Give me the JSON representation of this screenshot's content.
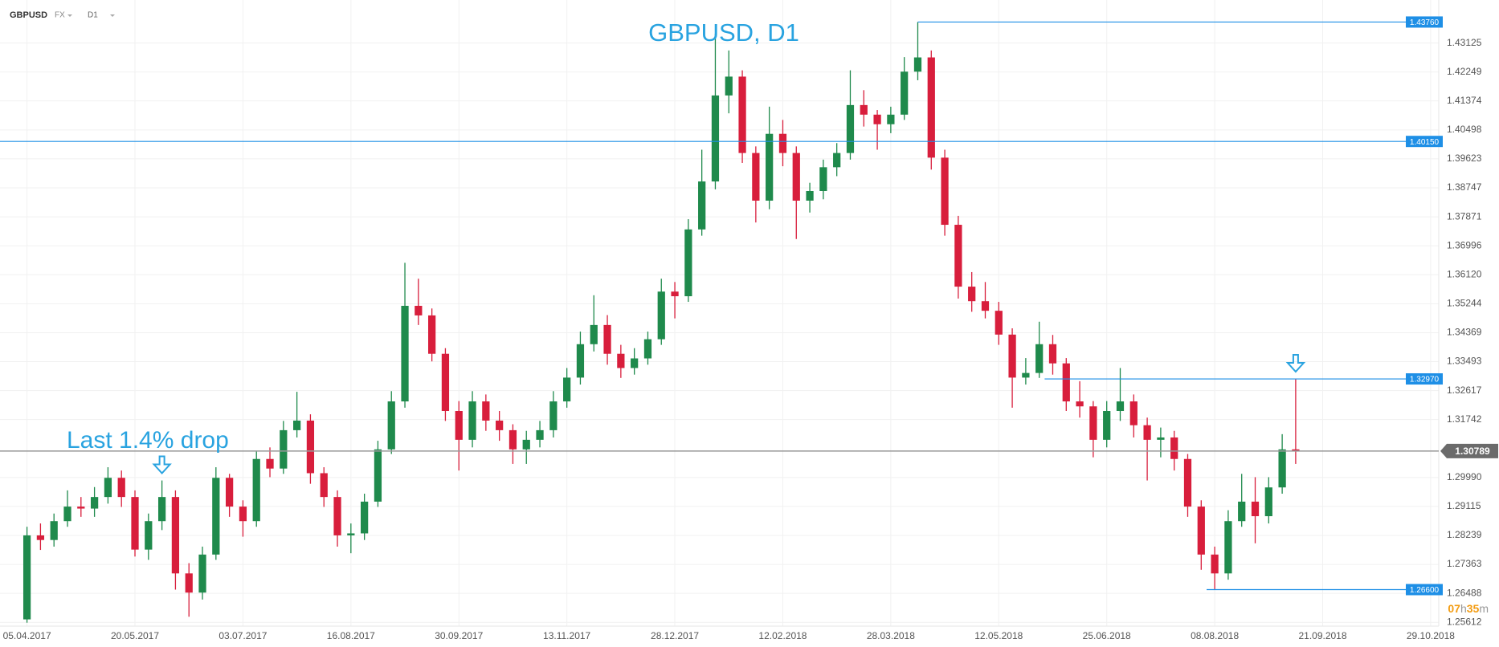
{
  "header": {
    "symbol": "GBPUSD",
    "market": "FX",
    "timeframe": "D1"
  },
  "chart_data": {
    "type": "candlestick",
    "annotations": [
      "GBPUSD, D1",
      "Last 1.4% drop"
    ],
    "up_color": "#1f8a4c",
    "down_color": "#d81e3c",
    "level_color": "#1e8fe6",
    "grid": true,
    "xlim": [
      -2,
      104.6
    ],
    "xticks": [
      {
        "value": 0,
        "label": "05.04.2017"
      },
      {
        "value": 8,
        "label": "20.05.2017"
      },
      {
        "value": 16,
        "label": "03.07.2017"
      },
      {
        "value": 24,
        "label": "16.08.2017"
      },
      {
        "value": 32,
        "label": "30.09.2017"
      },
      {
        "value": 40,
        "label": "13.11.2017"
      },
      {
        "value": 48,
        "label": "28.12.2017"
      },
      {
        "value": 56,
        "label": "12.02.2018"
      },
      {
        "value": 64,
        "label": "28.03.2018"
      },
      {
        "value": 72,
        "label": "12.05.2018"
      },
      {
        "value": 80,
        "label": "25.06.2018"
      },
      {
        "value": 88,
        "label": "08.08.2018"
      },
      {
        "value": 96,
        "label": "21.09.2018"
      },
      {
        "value": 104,
        "label": "29.10.2018"
      }
    ],
    "ylim": [
      1.25496,
      1.44426
    ],
    "yticks": [
      1.43125,
      1.42249,
      1.41374,
      1.40498,
      1.39623,
      1.38747,
      1.37871,
      1.36996,
      {
        "value": 1.3612,
        "label": "1.36120"
      },
      1.35244,
      1.34369,
      1.33493,
      1.32617,
      1.31742,
      {
        "value": 1.2999,
        "label": "1.29990"
      },
      1.29115,
      1.28239,
      1.27363,
      1.26488,
      1.25612
    ],
    "levels": [
      {
        "value": 1.4376,
        "label": "1.43760"
      },
      {
        "value": 1.4015,
        "label": "1.40150"
      },
      {
        "value": 1.3297,
        "label": "1.32970"
      },
      {
        "value": 1.266,
        "label": "1.26600"
      }
    ],
    "current_price": 1.30789,
    "ohlc": [
      [
        1.257,
        1.285,
        1.256,
        1.2824
      ],
      [
        1.2824,
        1.286,
        1.278,
        1.281
      ],
      [
        1.281,
        1.289,
        1.279,
        1.2867
      ],
      [
        1.2867,
        1.296,
        1.285,
        1.2911
      ],
      [
        1.2911,
        1.294,
        1.288,
        1.2905
      ],
      [
        1.2905,
        1.297,
        1.288,
        1.294
      ],
      [
        1.294,
        1.303,
        1.292,
        1.2998
      ],
      [
        1.2998,
        1.302,
        1.291,
        1.294
      ],
      [
        1.294,
        1.296,
        1.276,
        1.2781
      ],
      [
        1.2781,
        1.289,
        1.275,
        1.2867
      ],
      [
        1.2867,
        1.299,
        1.284,
        1.294
      ],
      [
        1.294,
        1.296,
        1.266,
        1.2709
      ],
      [
        1.2709,
        1.274,
        1.2578,
        1.2651
      ],
      [
        1.2651,
        1.279,
        1.263,
        1.2766
      ],
      [
        1.2766,
        1.303,
        1.275,
        1.2998
      ],
      [
        1.2998,
        1.301,
        1.288,
        1.2911
      ],
      [
        1.2911,
        1.293,
        1.282,
        1.2867
      ],
      [
        1.2867,
        1.308,
        1.285,
        1.3055
      ],
      [
        1.3055,
        1.309,
        1.3,
        1.3026
      ],
      [
        1.3026,
        1.317,
        1.301,
        1.3142
      ],
      [
        1.3142,
        1.3258,
        1.312,
        1.3171
      ],
      [
        1.3171,
        1.319,
        1.298,
        1.3012
      ],
      [
        1.3012,
        1.303,
        1.291,
        1.294
      ],
      [
        1.294,
        1.296,
        1.279,
        1.2824
      ],
      [
        1.2824,
        1.286,
        1.277,
        1.283
      ],
      [
        1.283,
        1.295,
        1.281,
        1.2926
      ],
      [
        1.2926,
        1.311,
        1.291,
        1.3084
      ],
      [
        1.3084,
        1.326,
        1.307,
        1.3229
      ],
      [
        1.3229,
        1.3648,
        1.321,
        1.3518
      ],
      [
        1.3518,
        1.36,
        1.346,
        1.3489
      ],
      [
        1.3489,
        1.351,
        1.335,
        1.3373
      ],
      [
        1.3373,
        1.339,
        1.317,
        1.32
      ],
      [
        1.32,
        1.323,
        1.302,
        1.3113
      ],
      [
        1.3113,
        1.326,
        1.309,
        1.3229
      ],
      [
        1.3229,
        1.325,
        1.314,
        1.3171
      ],
      [
        1.3171,
        1.32,
        1.311,
        1.3142
      ],
      [
        1.3142,
        1.316,
        1.304,
        1.3084
      ],
      [
        1.3084,
        1.314,
        1.304,
        1.3113
      ],
      [
        1.3113,
        1.317,
        1.309,
        1.3142
      ],
      [
        1.3142,
        1.326,
        1.312,
        1.3229
      ],
      [
        1.3229,
        1.333,
        1.321,
        1.3301
      ],
      [
        1.3301,
        1.344,
        1.328,
        1.3402
      ],
      [
        1.3402,
        1.355,
        1.338,
        1.346
      ],
      [
        1.346,
        1.349,
        1.334,
        1.3373
      ],
      [
        1.3373,
        1.34,
        1.33,
        1.333
      ],
      [
        1.333,
        1.339,
        1.331,
        1.3359
      ],
      [
        1.3359,
        1.344,
        1.334,
        1.3417
      ],
      [
        1.3417,
        1.36,
        1.34,
        1.3561
      ],
      [
        1.3561,
        1.359,
        1.348,
        1.3547
      ],
      [
        1.3547,
        1.378,
        1.353,
        1.3749
      ],
      [
        1.3749,
        1.399,
        1.373,
        1.3894
      ],
      [
        1.3894,
        1.4341,
        1.387,
        1.4154
      ],
      [
        1.4154,
        1.429,
        1.41,
        1.4211
      ],
      [
        1.4211,
        1.423,
        1.395,
        1.398
      ],
      [
        1.398,
        1.4,
        1.377,
        1.3836
      ],
      [
        1.3836,
        1.412,
        1.381,
        1.4038
      ],
      [
        1.4038,
        1.408,
        1.394,
        1.398
      ],
      [
        1.398,
        1.4,
        1.372,
        1.3836
      ],
      [
        1.3836,
        1.389,
        1.38,
        1.3865
      ],
      [
        1.3865,
        1.396,
        1.384,
        1.3937
      ],
      [
        1.3937,
        1.401,
        1.391,
        1.398
      ],
      [
        1.398,
        1.423,
        1.396,
        1.4125
      ],
      [
        1.4125,
        1.417,
        1.406,
        1.4096
      ],
      [
        1.4096,
        1.411,
        1.399,
        1.4067
      ],
      [
        1.4067,
        1.412,
        1.404,
        1.4096
      ],
      [
        1.4096,
        1.427,
        1.408,
        1.4226
      ],
      [
        1.4226,
        1.4376,
        1.42,
        1.4269
      ],
      [
        1.4269,
        1.429,
        1.393,
        1.3966
      ],
      [
        1.3966,
        1.399,
        1.373,
        1.3763
      ],
      [
        1.3763,
        1.379,
        1.354,
        1.3576
      ],
      [
        1.3576,
        1.362,
        1.35,
        1.3532
      ],
      [
        1.3532,
        1.359,
        1.348,
        1.3503
      ],
      [
        1.3503,
        1.353,
        1.34,
        1.3431
      ],
      [
        1.3431,
        1.345,
        1.321,
        1.3301
      ],
      [
        1.3301,
        1.336,
        1.328,
        1.3315
      ],
      [
        1.3315,
        1.347,
        1.33,
        1.3402
      ],
      [
        1.3402,
        1.343,
        1.331,
        1.3344
      ],
      [
        1.3344,
        1.336,
        1.32,
        1.3229
      ],
      [
        1.3229,
        1.329,
        1.318,
        1.3214
      ],
      [
        1.3214,
        1.323,
        1.306,
        1.3113
      ],
      [
        1.3113,
        1.323,
        1.309,
        1.32
      ],
      [
        1.32,
        1.333,
        1.317,
        1.3229
      ],
      [
        1.3229,
        1.325,
        1.312,
        1.3157
      ],
      [
        1.3157,
        1.318,
        1.299,
        1.3113
      ],
      [
        1.3113,
        1.315,
        1.306,
        1.312
      ],
      [
        1.312,
        1.314,
        1.302,
        1.3055
      ],
      [
        1.3055,
        1.307,
        1.288,
        1.2911
      ],
      [
        1.2911,
        1.293,
        1.272,
        1.2766
      ],
      [
        1.2766,
        1.279,
        1.266,
        1.2709
      ],
      [
        1.2709,
        1.29,
        1.269,
        1.2867
      ],
      [
        1.2867,
        1.301,
        1.285,
        1.2926
      ],
      [
        1.2926,
        1.3,
        1.28,
        1.2882
      ],
      [
        1.2882,
        1.3,
        1.286,
        1.2969
      ],
      [
        1.2969,
        1.313,
        1.295,
        1.3084
      ],
      [
        1.3084,
        1.3297,
        1.304,
        1.30789
      ]
    ]
  },
  "countdown": [
    "07",
    "h",
    "35",
    "m"
  ]
}
